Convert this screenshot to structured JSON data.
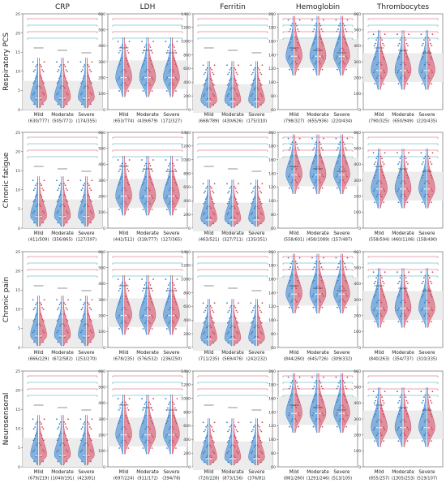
{
  "chart_data": {
    "type": "violin",
    "columns": [
      "CRP",
      "LDH",
      "Ferritin",
      "Hemoglobin",
      "Thrombocytes"
    ],
    "rows": [
      "Respiratory PCS",
      "Chronic fatigue",
      "Chronic pain",
      "Neurosensoral"
    ],
    "categories": [
      "Mild",
      "Moderate",
      "Severe"
    ],
    "colors": {
      "group_a": "#2f7fd0",
      "group_b": "#d3435c",
      "comparison_a": "#3aa3b8",
      "comparison_b": "#d24a66",
      "median_pair": "#222222"
    },
    "ylim": {
      "CRP": [
        0,
        25
      ],
      "LDH": [
        0,
        600
      ],
      "Ferritin": [
        0,
        1400
      ],
      "Hemoglobin": [
        60,
        200
      ],
      "Thrombocytes": [
        0,
        600
      ]
    },
    "yticks": {
      "CRP": [
        0,
        5,
        10,
        15,
        20,
        25
      ],
      "LDH": [
        0,
        100,
        200,
        300,
        400,
        500,
        600
      ],
      "Ferritin": [
        0,
        200,
        400,
        600,
        800,
        1000,
        1200,
        1400
      ],
      "Hemoglobin": [
        60,
        80,
        100,
        120,
        140,
        160,
        180,
        200
      ],
      "Thrombocytes": [
        0,
        100,
        200,
        300,
        400,
        500,
        600
      ]
    },
    "centers": {
      "CRP": 3,
      "LDH": 200,
      "Ferritin": 120,
      "Hemoglobin": 138,
      "Thrombocytes": 245
    },
    "sample_sizes": [
      [
        [
          "630/777",
          "505/771",
          "174/355"
        ],
        [
          "653/774",
          "439/679",
          "172/327"
        ],
        [
          "668/789",
          "430/626",
          "175/310"
        ],
        [
          "798/327",
          "655/936",
          "220/434"
        ],
        [
          "790/325",
          "650/949",
          "220/435"
        ]
      ],
      [
        [
          "411/509",
          "356/865",
          "127/397"
        ],
        [
          "442/512",
          "318/777",
          "127/365"
        ],
        [
          "463/521",
          "327/711",
          "135/351"
        ],
        [
          "558/601",
          "458/1089",
          "157/487"
        ],
        [
          "558/594",
          "460/1106",
          "158/490"
        ]
      ],
      [
        [
          "666/229",
          "672/582",
          "253/270"
        ],
        [
          "678/235",
          "576/532",
          "236/250"
        ],
        [
          "711/235",
          "569/476",
          "242/232"
        ],
        [
          "844/260",
          "645/726",
          "309/332"
        ],
        [
          "840/263",
          "354/737",
          "310/335"
        ]
      ],
      [
        [
          "679/219",
          "1040/191",
          "423/81"
        ],
        [
          "697/224",
          "911/172",
          "394/78"
        ],
        [
          "720/228",
          "873/156",
          "376/81"
        ],
        [
          "861/260",
          "1291/246",
          "513/105"
        ],
        [
          "855/257",
          "1305/253",
          "519/107"
        ]
      ]
    ]
  }
}
